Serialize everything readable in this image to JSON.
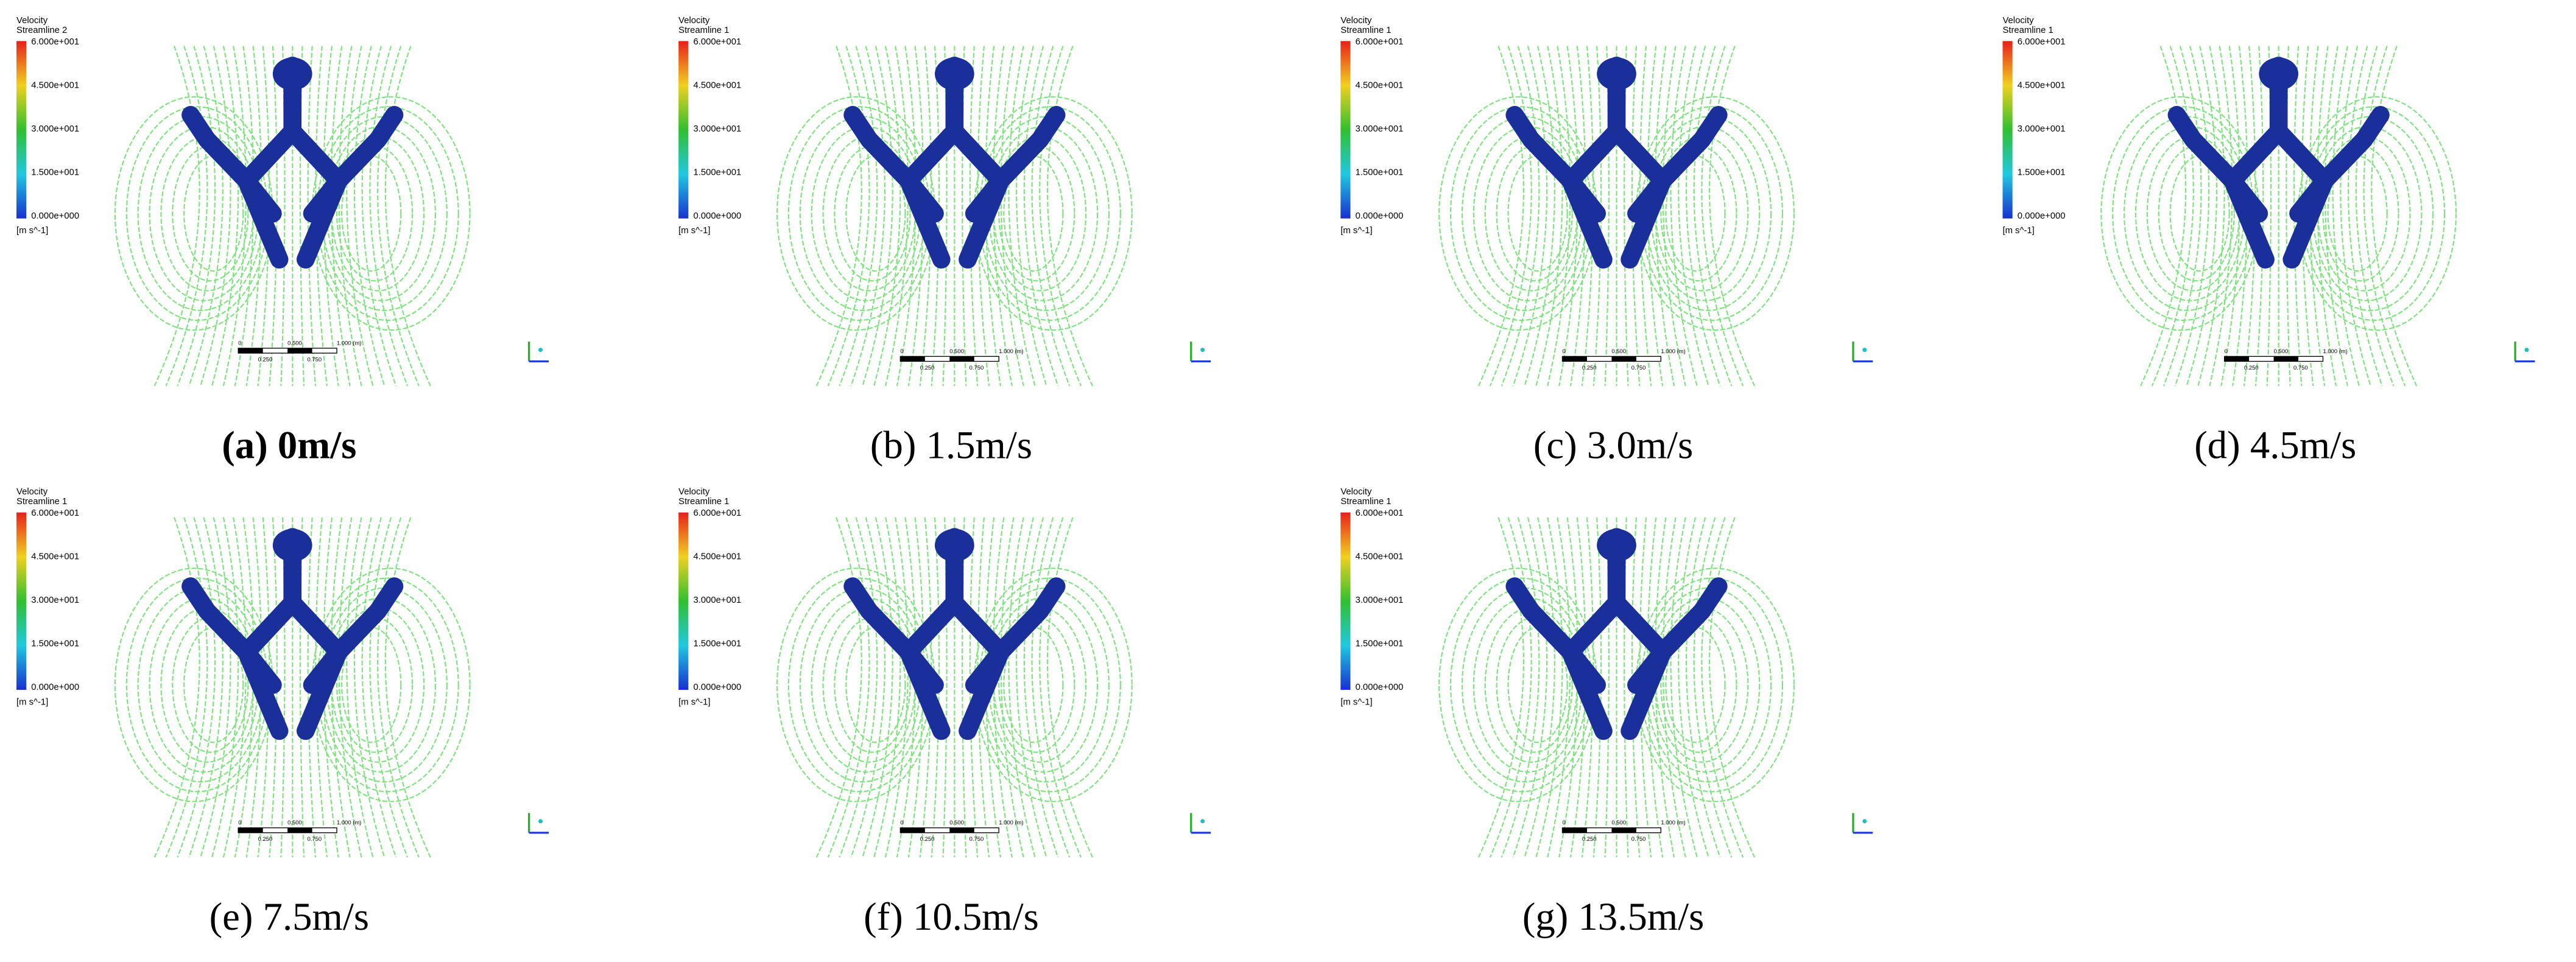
{
  "panels": [
    {
      "legend": {
        "title": "Velocity",
        "subtitle": "Streamline 2",
        "ticks": [
          "6.000e+001",
          "4.500e+001",
          "3.000e+001",
          "1.500e+001",
          "0.000e+000"
        ],
        "unit": "[m s^-1]"
      },
      "scale_bar": {
        "top": [
          "0",
          "0.500",
          "1.000 (m)"
        ],
        "bottom": [
          "0.250",
          "0.750"
        ]
      },
      "caption": "(a) 0m/s",
      "bold": true
    },
    {
      "legend": {
        "title": "Velocity",
        "subtitle": "Streamline 1",
        "ticks": [
          "6.000e+001",
          "4.500e+001",
          "3.000e+001",
          "1.500e+001",
          "0.000e+000"
        ],
        "unit": "[m s^-1]"
      },
      "scale_bar": {
        "top": [
          "0",
          "0.500",
          "1.000 (m)"
        ],
        "bottom": [
          "0.250",
          "0.750"
        ]
      },
      "caption": "(b) 1.5m/s"
    },
    {
      "legend": {
        "title": "Velocity",
        "subtitle": "Streamline 1",
        "ticks": [
          "6.000e+001",
          "4.500e+001",
          "3.000e+001",
          "1.500e+001",
          "0.000e+000"
        ],
        "unit": "[m s^-1]"
      },
      "scale_bar": {
        "top": [
          "0",
          "0.500",
          "1.000 (m)"
        ],
        "bottom": [
          "0.250",
          "0.750"
        ]
      },
      "caption": "(c) 3.0m/s"
    },
    {
      "legend": {
        "title": "Velocity",
        "subtitle": "Streamline 1",
        "ticks": [
          "6.000e+001",
          "4.500e+001",
          "3.000e+001",
          "1.500e+001",
          "0.000e+000"
        ],
        "unit": "[m s^-1]"
      },
      "scale_bar": {
        "top": [
          "0",
          "0.500",
          "1.000 (m)"
        ],
        "bottom": [
          "0.250",
          "0.750"
        ]
      },
      "caption": "(d) 4.5m/s"
    },
    {
      "legend": {
        "title": "Velocity",
        "subtitle": "Streamline 1",
        "ticks": [
          "6.000e+001",
          "4.500e+001",
          "3.000e+001",
          "1.500e+001",
          "0.000e+000"
        ],
        "unit": "[m s^-1]"
      },
      "scale_bar": {
        "top": [
          "0",
          "0.500",
          "1.000 (m)"
        ],
        "bottom": [
          "0.250",
          "0.750"
        ]
      },
      "caption": "(e) 7.5m/s"
    },
    {
      "legend": {
        "title": "Velocity",
        "subtitle": "Streamline 1",
        "ticks": [
          "6.000e+001",
          "4.500e+001",
          "3.000e+001",
          "1.500e+001",
          "0.000e+000"
        ],
        "unit": "[m s^-1]"
      },
      "scale_bar": {
        "top": [
          "0",
          "0.500",
          "1.000 (m)"
        ],
        "bottom": [
          "0.250",
          "0.750"
        ]
      },
      "caption": "(f) 10.5m/s"
    },
    {
      "legend": {
        "title": "Velocity",
        "subtitle": "Streamline 1",
        "ticks": [
          "6.000e+001",
          "4.500e+001",
          "3.000e+001",
          "1.500e+001",
          "0.000e+000"
        ],
        "unit": "[m s^-1]"
      },
      "scale_bar": {
        "top": [
          "0",
          "0.500",
          "1.000 (m)"
        ],
        "bottom": [
          "0.250",
          "0.750"
        ]
      },
      "caption": "(g) 13.5m/s"
    }
  ]
}
